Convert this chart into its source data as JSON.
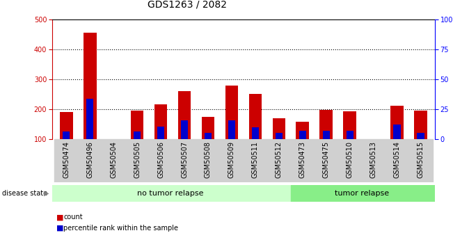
{
  "title": "GDS1263 / 2082",
  "samples": [
    "GSM50474",
    "GSM50496",
    "GSM50504",
    "GSM50505",
    "GSM50506",
    "GSM50507",
    "GSM50508",
    "GSM50509",
    "GSM50511",
    "GSM50512",
    "GSM50473",
    "GSM50475",
    "GSM50510",
    "GSM50513",
    "GSM50514",
    "GSM50515"
  ],
  "count_values": [
    190,
    455,
    100,
    196,
    217,
    260,
    175,
    278,
    250,
    170,
    158,
    198,
    193,
    100,
    211,
    195
  ],
  "percentile_values": [
    125,
    234,
    100,
    126,
    143,
    163,
    120,
    163,
    140,
    120,
    128,
    128,
    128,
    100,
    148,
    122
  ],
  "baseline": 100,
  "ymin": 100,
  "ymax": 500,
  "yticks_left": [
    100,
    200,
    300,
    400,
    500
  ],
  "yticks_right": [
    0,
    25,
    50,
    75,
    100
  ],
  "no_tumor_count": 10,
  "tumor_count": 6,
  "no_tumor_label": "no tumor relapse",
  "tumor_label": "tumor relapse",
  "disease_state_label": "disease state",
  "legend_count": "count",
  "legend_percentile": "percentile rank within the sample",
  "count_color": "#cc0000",
  "percentile_color": "#0000cc",
  "bar_width": 0.55,
  "bg_color_tick": "#d0d0d0",
  "bg_color_no_tumor": "#ccffcc",
  "bg_color_tumor": "#88ee88",
  "title_fontsize": 10,
  "tick_fontsize": 7,
  "label_fontsize": 8
}
